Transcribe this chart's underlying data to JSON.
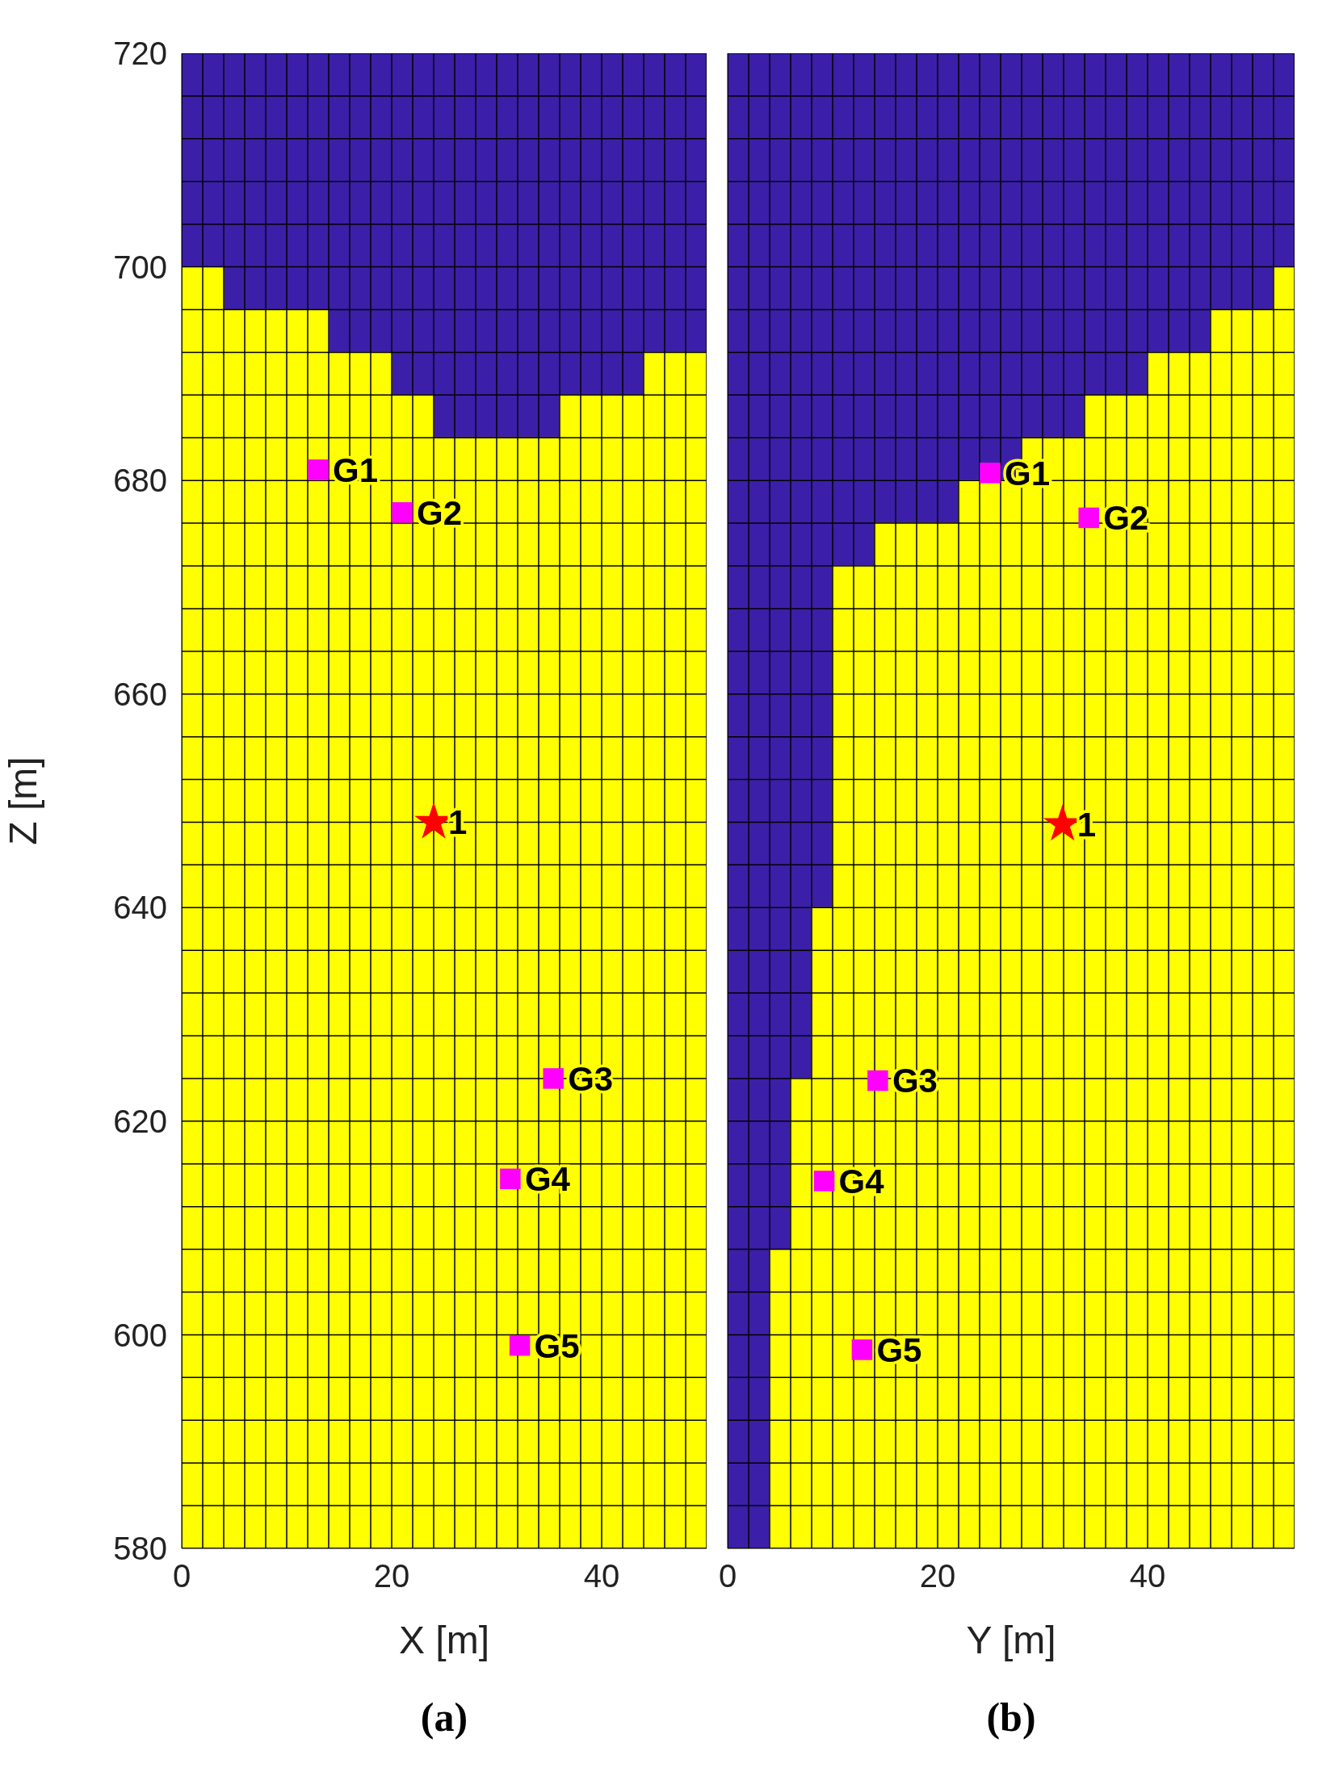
{
  "chart_data": [
    {
      "type": "area",
      "title": "(a)",
      "xlabel": "X [m]",
      "ylabel": "Z [m]",
      "grid": true,
      "xlim": [
        0,
        50
      ],
      "ylim": [
        580,
        720
      ],
      "xticks": [
        0,
        {
          "value": 2,
          "label": null
        },
        {
          "value": 4,
          "label": null
        },
        {
          "value": 6,
          "label": null
        },
        {
          "value": 8,
          "label": null
        },
        {
          "value": 10,
          "label": null
        },
        {
          "value": 12,
          "label": null
        },
        {
          "value": 14,
          "label": null
        },
        {
          "value": 16,
          "label": null
        },
        {
          "value": 18,
          "label": null
        },
        20,
        {
          "value": 22,
          "label": null
        },
        {
          "value": 24,
          "label": null
        },
        {
          "value": 26,
          "label": null
        },
        {
          "value": 28,
          "label": null
        },
        {
          "value": 30,
          "label": null
        },
        {
          "value": 32,
          "label": null
        },
        {
          "value": 34,
          "label": null
        },
        {
          "value": 36,
          "label": null
        },
        {
          "value": 38,
          "label": null
        },
        40,
        {
          "value": 42,
          "label": null
        },
        {
          "value": 44,
          "label": null
        },
        {
          "value": 46,
          "label": null
        },
        {
          "value": 48,
          "label": null
        },
        {
          "value": 50,
          "label": null
        }
      ],
      "yticks": [
        580,
        {
          "value": 584,
          "label": null
        },
        {
          "value": 588,
          "label": null
        },
        {
          "value": 592,
          "label": null
        },
        {
          "value": 596,
          "label": null
        },
        600,
        {
          "value": 604,
          "label": null
        },
        {
          "value": 608,
          "label": null
        },
        {
          "value": 612,
          "label": null
        },
        {
          "value": 616,
          "label": null
        },
        620,
        {
          "value": 624,
          "label": null
        },
        {
          "value": 628,
          "label": null
        },
        {
          "value": 632,
          "label": null
        },
        {
          "value": 636,
          "label": null
        },
        640,
        {
          "value": 644,
          "label": null
        },
        {
          "value": 648,
          "label": null
        },
        {
          "value": 652,
          "label": null
        },
        {
          "value": 656,
          "label": null
        },
        660,
        {
          "value": 664,
          "label": null
        },
        {
          "value": 668,
          "label": null
        },
        {
          "value": 672,
          "label": null
        },
        {
          "value": 676,
          "label": null
        },
        680,
        {
          "value": 684,
          "label": null
        },
        {
          "value": 688,
          "label": null
        },
        {
          "value": 692,
          "label": null
        },
        {
          "value": 696,
          "label": null
        },
        700,
        {
          "value": 704,
          "label": null
        },
        {
          "value": 708,
          "label": null
        },
        {
          "value": 712,
          "label": null
        },
        {
          "value": 716,
          "label": null
        },
        720
      ],
      "x": [
        0,
        4,
        4,
        14,
        14,
        20,
        20,
        24,
        24,
        36,
        36,
        44,
        44,
        50
      ],
      "series": [
        {
          "type": "area",
          "color": "#3c1fa8",
          "values": [
            720,
            720,
            720,
            720,
            720,
            720,
            720,
            720,
            720,
            720,
            720,
            720,
            720,
            720
          ]
        },
        {
          "type": "area",
          "color": "#ffff00",
          "values": [
            700,
            700,
            696,
            696,
            692,
            692,
            688,
            688,
            684,
            684,
            688,
            688,
            692,
            692
          ]
        },
        {
          "type": "scatter",
          "marker": "square",
          "color": "#ff00ff",
          "x": [
            13,
            21,
            35.4,
            31.3,
            32.2
          ],
          "values": [
            681,
            677,
            624,
            614.6,
            599
          ]
        },
        {
          "type": "scatter",
          "marker": "star",
          "color": "#ff0000",
          "x": [
            24
          ],
          "values": [
            648
          ]
        }
      ],
      "annotations": [
        {
          "text": "G1",
          "x": 13,
          "y": 681
        },
        {
          "text": "G2",
          "x": 21,
          "y": 677
        },
        {
          "text": "G3",
          "x": 35.4,
          "y": 624
        },
        {
          "text": "G4",
          "x": 31.3,
          "y": 614.6
        },
        {
          "text": "G5",
          "x": 32.2,
          "y": 599
        },
        {
          "text": "1",
          "x": 24,
          "y": 648
        }
      ]
    },
    {
      "type": "area",
      "title": "(b)",
      "xlabel": "Y [m]",
      "grid": true,
      "tick_labels": "x",
      "xlim": [
        0,
        54
      ],
      "ylim": [
        580,
        720
      ],
      "xticks": [
        0,
        {
          "value": 2,
          "label": null
        },
        {
          "value": 4,
          "label": null
        },
        {
          "value": 6,
          "label": null
        },
        {
          "value": 8,
          "label": null
        },
        {
          "value": 10,
          "label": null
        },
        {
          "value": 12,
          "label": null
        },
        {
          "value": 14,
          "label": null
        },
        {
          "value": 16,
          "label": null
        },
        {
          "value": 18,
          "label": null
        },
        20,
        {
          "value": 22,
          "label": null
        },
        {
          "value": 24,
          "label": null
        },
        {
          "value": 26,
          "label": null
        },
        {
          "value": 28,
          "label": null
        },
        {
          "value": 30,
          "label": null
        },
        {
          "value": 32,
          "label": null
        },
        {
          "value": 34,
          "label": null
        },
        {
          "value": 36,
          "label": null
        },
        {
          "value": 38,
          "label": null
        },
        40,
        {
          "value": 42,
          "label": null
        },
        {
          "value": 44,
          "label": null
        },
        {
          "value": 46,
          "label": null
        },
        {
          "value": 48,
          "label": null
        },
        {
          "value": 50,
          "label": null
        },
        {
          "value": 52,
          "label": null
        },
        {
          "value": 54,
          "label": null
        }
      ],
      "yticks": [
        580,
        {
          "value": 584,
          "label": null
        },
        {
          "value": 588,
          "label": null
        },
        {
          "value": 592,
          "label": null
        },
        {
          "value": 596,
          "label": null
        },
        600,
        {
          "value": 604,
          "label": null
        },
        {
          "value": 608,
          "label": null
        },
        {
          "value": 612,
          "label": null
        },
        {
          "value": 616,
          "label": null
        },
        620,
        {
          "value": 624,
          "label": null
        },
        {
          "value": 628,
          "label": null
        },
        {
          "value": 632,
          "label": null
        },
        {
          "value": 636,
          "label": null
        },
        640,
        {
          "value": 644,
          "label": null
        },
        {
          "value": 648,
          "label": null
        },
        {
          "value": 652,
          "label": null
        },
        {
          "value": 656,
          "label": null
        },
        660,
        {
          "value": 664,
          "label": null
        },
        {
          "value": 668,
          "label": null
        },
        {
          "value": 672,
          "label": null
        },
        {
          "value": 676,
          "label": null
        },
        680,
        {
          "value": 684,
          "label": null
        },
        {
          "value": 688,
          "label": null
        },
        {
          "value": 692,
          "label": null
        },
        {
          "value": 696,
          "label": null
        },
        700,
        {
          "value": 704,
          "label": null
        },
        {
          "value": 708,
          "label": null
        },
        {
          "value": 712,
          "label": null
        },
        {
          "value": 716,
          "label": null
        },
        720
      ],
      "x": [
        0,
        4,
        4,
        6,
        6,
        8,
        8,
        10,
        10,
        14,
        14,
        22,
        22,
        28,
        28,
        34,
        34,
        40,
        40,
        46,
        46,
        52,
        52,
        54
      ],
      "series": [
        {
          "type": "area",
          "color": "#3c1fa8",
          "values": [
            720,
            720,
            720,
            720,
            720,
            720,
            720,
            720,
            720,
            720,
            720,
            720,
            720,
            720,
            720,
            720,
            720,
            720,
            720,
            720,
            720,
            720,
            720,
            720
          ]
        },
        {
          "type": "area",
          "color": "#ffff00",
          "values": [
            580,
            580,
            608,
            608,
            624,
            624,
            640,
            640,
            672,
            672,
            676,
            676,
            680,
            680,
            684,
            684,
            688,
            688,
            692,
            692,
            696,
            696,
            700,
            700
          ]
        },
        {
          "type": "scatter",
          "marker": "square",
          "color": "#ff00ff",
          "x": [
            25,
            34.4,
            14.3,
            9.2,
            12.8
          ],
          "values": [
            680.7,
            676.5,
            623.8,
            614.4,
            598.6
          ]
        },
        {
          "type": "scatter",
          "marker": "star",
          "color": "#ff0000",
          "x": [
            31.9
          ],
          "values": [
            647.8
          ]
        }
      ],
      "annotations": [
        {
          "text": "G1",
          "x": 25,
          "y": 680.7
        },
        {
          "text": "G2",
          "x": 34.4,
          "y": 676.5
        },
        {
          "text": "G3",
          "x": 14.3,
          "y": 623.8
        },
        {
          "text": "G4",
          "x": 9.2,
          "y": 614.4
        },
        {
          "text": "G5",
          "x": 12.8,
          "y": 598.6
        },
        {
          "text": "1",
          "x": 31.9,
          "y": 647.8
        }
      ]
    }
  ]
}
